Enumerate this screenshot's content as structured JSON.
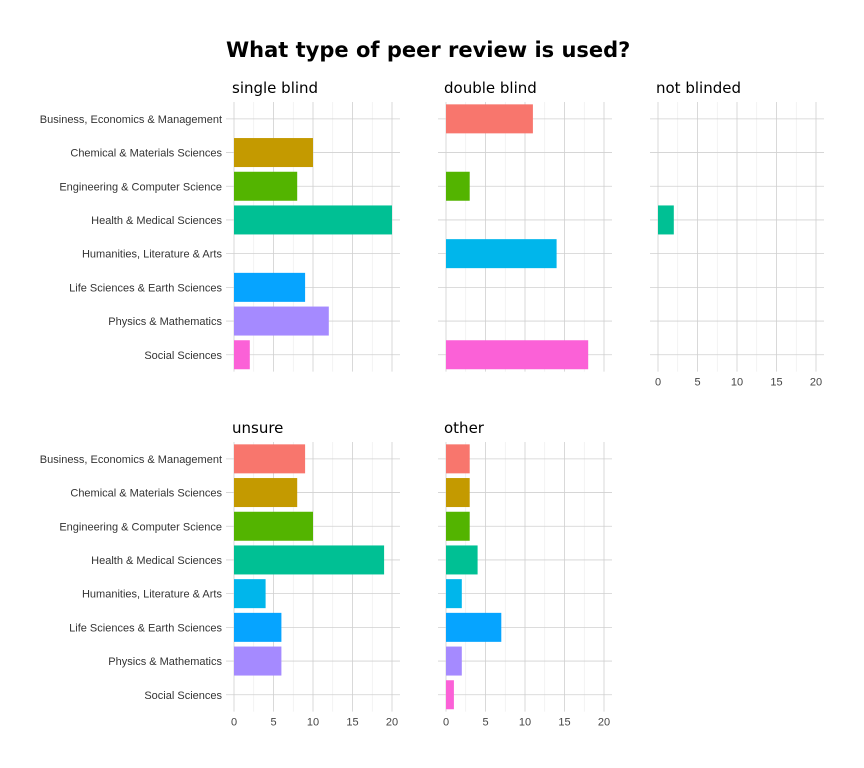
{
  "chart_data": {
    "type": "bar",
    "orientation": "horizontal",
    "title": "What type of peer review is used?",
    "categories": [
      "Business, Economics & Management",
      "Chemical & Materials Sciences",
      "Engineering & Computer Science",
      "Health & Medical Sciences",
      "Humanities, Literature & Arts",
      "Life Sciences & Earth Sciences",
      "Physics & Mathematics",
      "Social Sciences"
    ],
    "colors": [
      "#F8766D",
      "#C49A00",
      "#53B400",
      "#00C094",
      "#00B6EB",
      "#06A4FF",
      "#A58AFF",
      "#FB61D7"
    ],
    "xlim": [
      0,
      21
    ],
    "xticks": [
      0,
      5,
      10,
      15,
      20
    ],
    "grid": true,
    "facets": [
      {
        "name": "single blind",
        "values": [
          0,
          10,
          8,
          20,
          0,
          9,
          12,
          2
        ]
      },
      {
        "name": "double blind",
        "values": [
          11,
          0,
          3,
          0,
          14,
          0,
          0,
          18
        ]
      },
      {
        "name": "not blinded",
        "values": [
          0,
          0,
          0,
          2,
          0,
          0,
          0,
          0
        ]
      },
      {
        "name": "unsure",
        "values": [
          9,
          8,
          10,
          19,
          4,
          6,
          6,
          0
        ]
      },
      {
        "name": "other",
        "values": [
          3,
          3,
          3,
          4,
          2,
          7,
          2,
          1
        ]
      }
    ]
  }
}
